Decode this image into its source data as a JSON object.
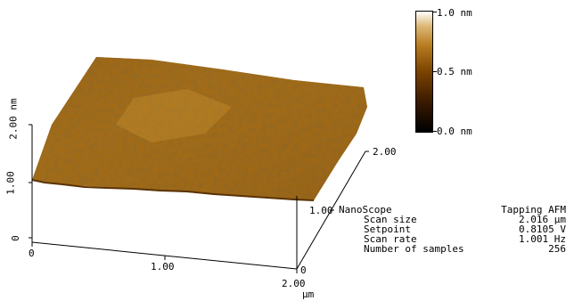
{
  "colorbar": {
    "top_label": "1.0 nm",
    "mid_label": "0.5 nm",
    "bottom_label": "0.0 nm",
    "colors": [
      "#000000",
      "#3a1a00",
      "#7a4300",
      "#b87c20",
      "#dcb878",
      "#ffffff"
    ]
  },
  "surface": {
    "base_color": "#9c6414",
    "light_color": "#d9a33a",
    "dark_color": "#4a2500"
  },
  "axes": {
    "z_label": "2.00 nm",
    "z_mid": "1.00",
    "z_zero": "0",
    "x_zero": "0",
    "x_mid": "1.00",
    "x_max": "2.00",
    "x_unit": "µm",
    "y_zero": "0",
    "y_mid": "1.00",
    "y_max": "2.00"
  },
  "info": {
    "header_left": "NanoScope",
    "header_right": "Tapping AFM",
    "rows": [
      {
        "label": "Scan size",
        "value": "2.016 µm"
      },
      {
        "label": "Setpoint",
        "value": "0.8105 V"
      },
      {
        "label": "Scan rate",
        "value": "1.001 Hz"
      },
      {
        "label": "Number of samples",
        "value": "256"
      }
    ]
  }
}
